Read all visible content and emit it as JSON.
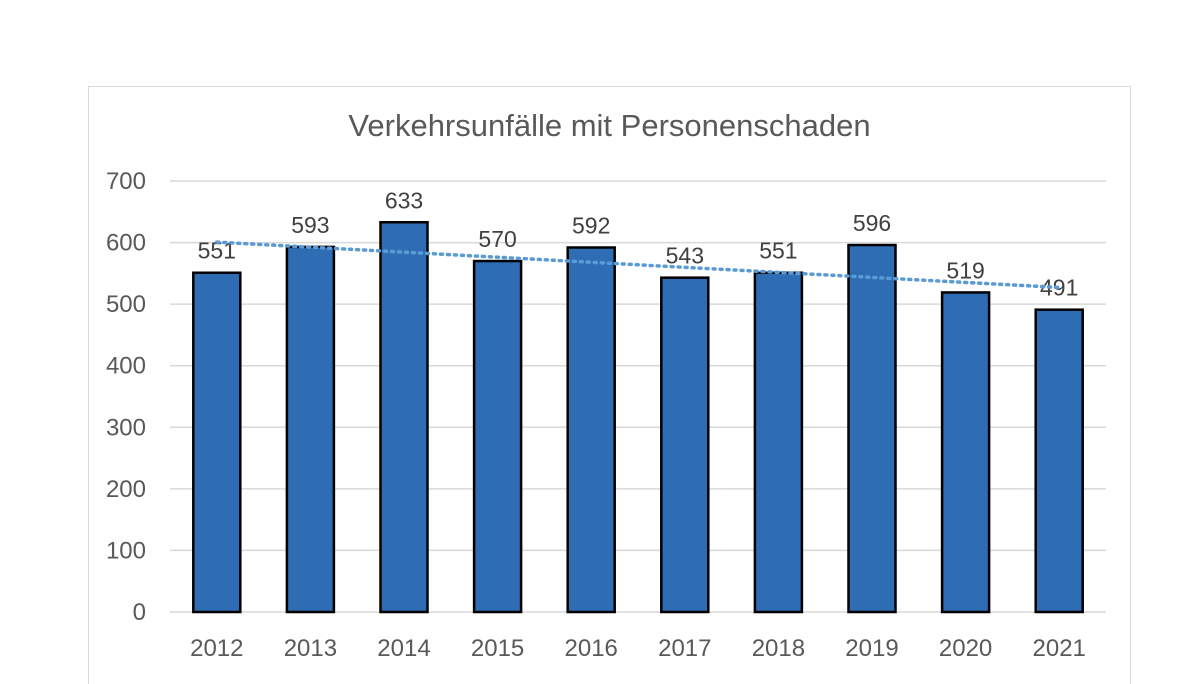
{
  "chart_data": {
    "type": "bar",
    "title": "Verkehrsunfälle mit Personenschaden",
    "categories": [
      "2012",
      "2013",
      "2014",
      "2015",
      "2016",
      "2017",
      "2018",
      "2019",
      "2020",
      "2021"
    ],
    "values": [
      551,
      593,
      633,
      570,
      592,
      543,
      551,
      596,
      519,
      491
    ],
    "data_labels": [
      "551",
      "593",
      "633",
      "570",
      "592",
      "543",
      "551",
      "596",
      "519",
      "491"
    ],
    "ylim": [
      0,
      700
    ],
    "yticks": [
      "0",
      "100",
      "200",
      "300",
      "400",
      "500",
      "600",
      "700"
    ],
    "grid": true,
    "trendline": {
      "type": "linear",
      "style": "dotted",
      "color": "#5b9bd5"
    },
    "colors": {
      "bar": "#2e6db4",
      "bar_border": "#000000",
      "grid": "#d9d9d9",
      "text": "#595959"
    }
  }
}
